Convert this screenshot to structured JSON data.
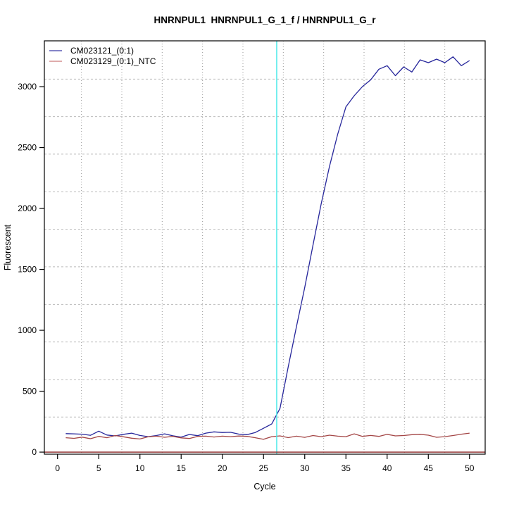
{
  "chart_data": {
    "type": "line",
    "title": "HNRNPUL1  HNRNPUL1_G_1_f / HNRNPUL1_G_r",
    "xlabel": "Cycle",
    "ylabel": "Fluorescent",
    "x_ticks": [
      0,
      5,
      10,
      15,
      20,
      25,
      30,
      35,
      40,
      45,
      50
    ],
    "y_ticks": [
      0,
      500,
      1000,
      1500,
      2000,
      2500,
      3000
    ],
    "xlim": [
      -1.6,
      51.9
    ],
    "ylim": [
      -17,
      3376
    ],
    "x": [
      1,
      2,
      3,
      4,
      5,
      6,
      7,
      8,
      9,
      10,
      11,
      12,
      13,
      14,
      15,
      16,
      17,
      18,
      19,
      20,
      21,
      22,
      23,
      24,
      25,
      26,
      27,
      28,
      29,
      30,
      31,
      32,
      33,
      34,
      35,
      36,
      37,
      38,
      39,
      40,
      41,
      42,
      43,
      44,
      45,
      46,
      47,
      48,
      49,
      50
    ],
    "series": [
      {
        "name": "CM023121_(0:1)",
        "color": "#26269b",
        "legend_color": "#3a3aa8",
        "values": [
          152,
          150,
          147,
          138,
          172,
          140,
          133,
          146,
          156,
          137,
          127,
          136,
          150,
          134,
          123,
          145,
          135,
          156,
          166,
          161,
          163,
          148,
          143,
          161,
          196,
          231,
          358,
          700,
          1030,
          1350,
          1700,
          2040,
          2345,
          2610,
          2835,
          2925,
          3000,
          3056,
          3143,
          3172,
          3090,
          3162,
          3120,
          3220,
          3197,
          3226,
          3197,
          3245,
          3172,
          3214
        ]
      },
      {
        "name": "CM023129_(0:1)_NTC",
        "color": "#a34545",
        "legend_color": "#cc7a7a",
        "values": [
          118,
          113,
          123,
          110,
          129,
          118,
          136,
          126,
          114,
          108,
          126,
          131,
          122,
          129,
          117,
          112,
          129,
          131,
          124,
          131,
          127,
          132,
          129,
          118,
          105,
          127,
          133,
          119,
          131,
          121,
          136,
          127,
          139,
          131,
          127,
          150,
          129,
          137,
          129,
          146,
          133,
          136,
          143,
          146,
          139,
          122,
          127,
          136,
          147,
          156
        ]
      }
    ],
    "threshold_cycle_line": {
      "x": 26.6,
      "color": "#4de9e9"
    },
    "baseline_line": {
      "y": 0,
      "color": "#8b2525"
    },
    "grid": {
      "x_cycles": [
        2.9,
        7.8,
        12.7,
        17.6,
        22.5,
        27.4,
        32.3,
        37.2,
        42.1,
        47.0
      ],
      "y_values": [
        3062,
        2754,
        2446,
        2137,
        1829,
        1521,
        1212,
        904,
        596,
        288
      ],
      "v_color": "#999999",
      "h_color": "#bbbbbb"
    },
    "legend_position": "top-left",
    "box_color": "#000000"
  }
}
